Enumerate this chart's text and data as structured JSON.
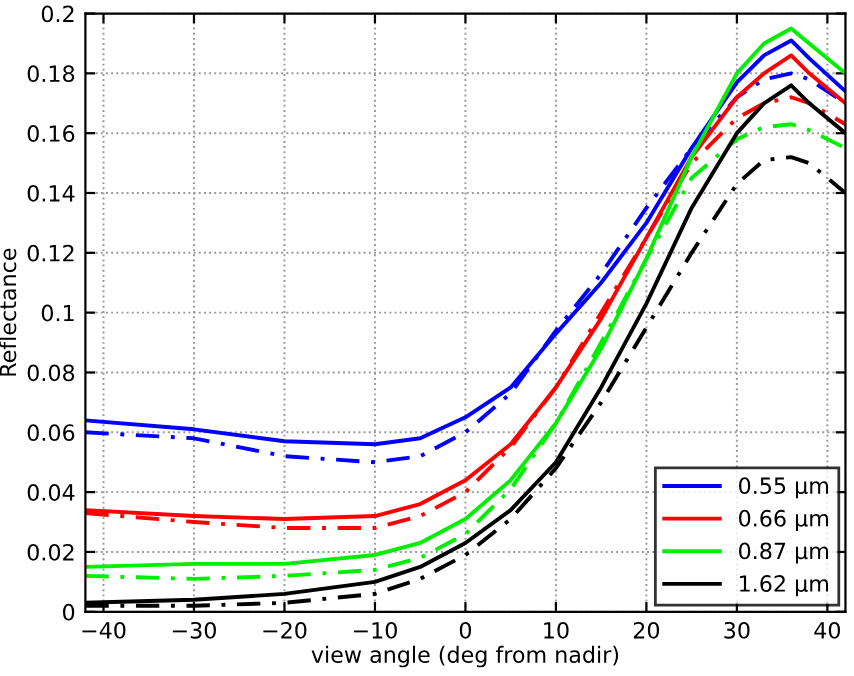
{
  "chart_data": {
    "type": "line",
    "xlabel": "view angle (deg from nadir)",
    "ylabel": "Reflectance",
    "xlim": [
      -42,
      42
    ],
    "ylim": [
      0,
      0.2
    ],
    "xticks": [
      {
        "value": -40,
        "label": "−40"
      },
      {
        "value": -30,
        "label": "−30"
      },
      {
        "value": -20,
        "label": "−20"
      },
      {
        "value": -10,
        "label": "−10"
      },
      0,
      10,
      20,
      30,
      40
    ],
    "yticks": [
      0,
      0.02,
      0.04,
      0.06,
      0.08,
      0.1,
      0.12,
      0.14,
      0.16,
      0.18,
      0.2
    ],
    "grid": true,
    "legend": "bottom right",
    "marker": "none",
    "x": [
      -42,
      -30,
      -20,
      -10,
      -5,
      0,
      5,
      10,
      15,
      20,
      25,
      30,
      33,
      36,
      38,
      42
    ],
    "series": [
      {
        "name": "0.55 μm",
        "color": "#0000ff",
        "line_style": "solid",
        "values": [
          0.064,
          0.061,
          0.057,
          0.056,
          0.058,
          0.065,
          0.075,
          0.093,
          0.11,
          0.13,
          0.155,
          0.177,
          0.186,
          0.191,
          0.185,
          0.174
        ]
      },
      {
        "color": "#0000ff",
        "line_style": "dashed",
        "values": [
          0.06,
          0.058,
          0.052,
          0.05,
          0.052,
          0.06,
          0.073,
          0.094,
          0.113,
          0.135,
          0.155,
          0.172,
          0.178,
          0.18,
          0.178,
          0.17
        ]
      },
      {
        "name": "0.66 μm",
        "color": "#ff0000",
        "line_style": "solid",
        "values": [
          0.034,
          0.032,
          0.031,
          0.032,
          0.036,
          0.044,
          0.056,
          0.075,
          0.098,
          0.125,
          0.152,
          0.172,
          0.18,
          0.186,
          0.18,
          0.17
        ]
      },
      {
        "color": "#ff0000",
        "line_style": "dashed",
        "values": [
          0.033,
          0.03,
          0.028,
          0.028,
          0.032,
          0.04,
          0.055,
          0.075,
          0.1,
          0.125,
          0.15,
          0.165,
          0.17,
          0.172,
          0.17,
          0.163
        ]
      },
      {
        "name": "0.87 μm",
        "color": "#00ee00",
        "line_style": "solid",
        "values": [
          0.015,
          0.016,
          0.016,
          0.019,
          0.023,
          0.031,
          0.044,
          0.063,
          0.088,
          0.118,
          0.152,
          0.18,
          0.19,
          0.195,
          0.19,
          0.18
        ]
      },
      {
        "color": "#00ee00",
        "line_style": "dashed",
        "values": [
          0.012,
          0.011,
          0.012,
          0.014,
          0.018,
          0.026,
          0.041,
          0.063,
          0.09,
          0.118,
          0.145,
          0.158,
          0.162,
          0.163,
          0.161,
          0.155
        ]
      },
      {
        "name": "1.62 μm",
        "color": "#000000",
        "line_style": "solid",
        "values": [
          0.003,
          0.004,
          0.006,
          0.01,
          0.015,
          0.023,
          0.034,
          0.05,
          0.075,
          0.103,
          0.135,
          0.16,
          0.17,
          0.176,
          0.17,
          0.16
        ]
      },
      {
        "color": "#000000",
        "line_style": "dashed",
        "values": [
          0.002,
          0.002,
          0.003,
          0.006,
          0.011,
          0.019,
          0.031,
          0.048,
          0.07,
          0.095,
          0.12,
          0.143,
          0.151,
          0.152,
          0.15,
          0.14
        ]
      }
    ]
  }
}
